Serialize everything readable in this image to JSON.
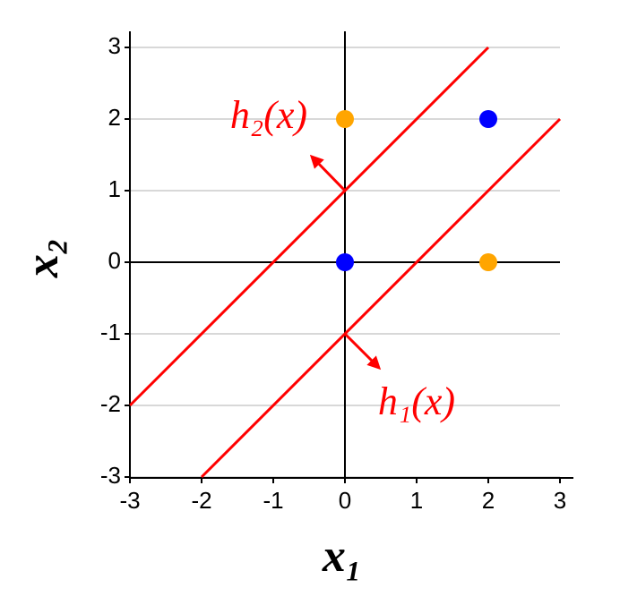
{
  "chart_data": {
    "type": "scatter",
    "xlabel": "x₁",
    "ylabel": "x₂",
    "xlim": [
      -3,
      3
    ],
    "ylim": [
      -3,
      3
    ],
    "xticks": [
      -3,
      -2,
      -1,
      0,
      1,
      2,
      3
    ],
    "yticks": [
      -3,
      -2,
      -1,
      0,
      1,
      2,
      3
    ],
    "grid": true,
    "series": [
      {
        "color": "#ffa500",
        "x": [
          0,
          2
        ],
        "values": [
          2,
          0
        ]
      },
      {
        "color": "#0000ff",
        "x": [
          0,
          2
        ],
        "values": [
          0,
          2
        ]
      }
    ],
    "lines": [
      {
        "label": "h₁(x)",
        "color": "#ff0000",
        "x": [
          -2,
          3
        ],
        "values": [
          -3,
          2
        ]
      },
      {
        "label": "h₂(x)",
        "color": "#ff0000",
        "x": [
          -3,
          2
        ],
        "values": [
          -2,
          3
        ]
      }
    ]
  }
}
